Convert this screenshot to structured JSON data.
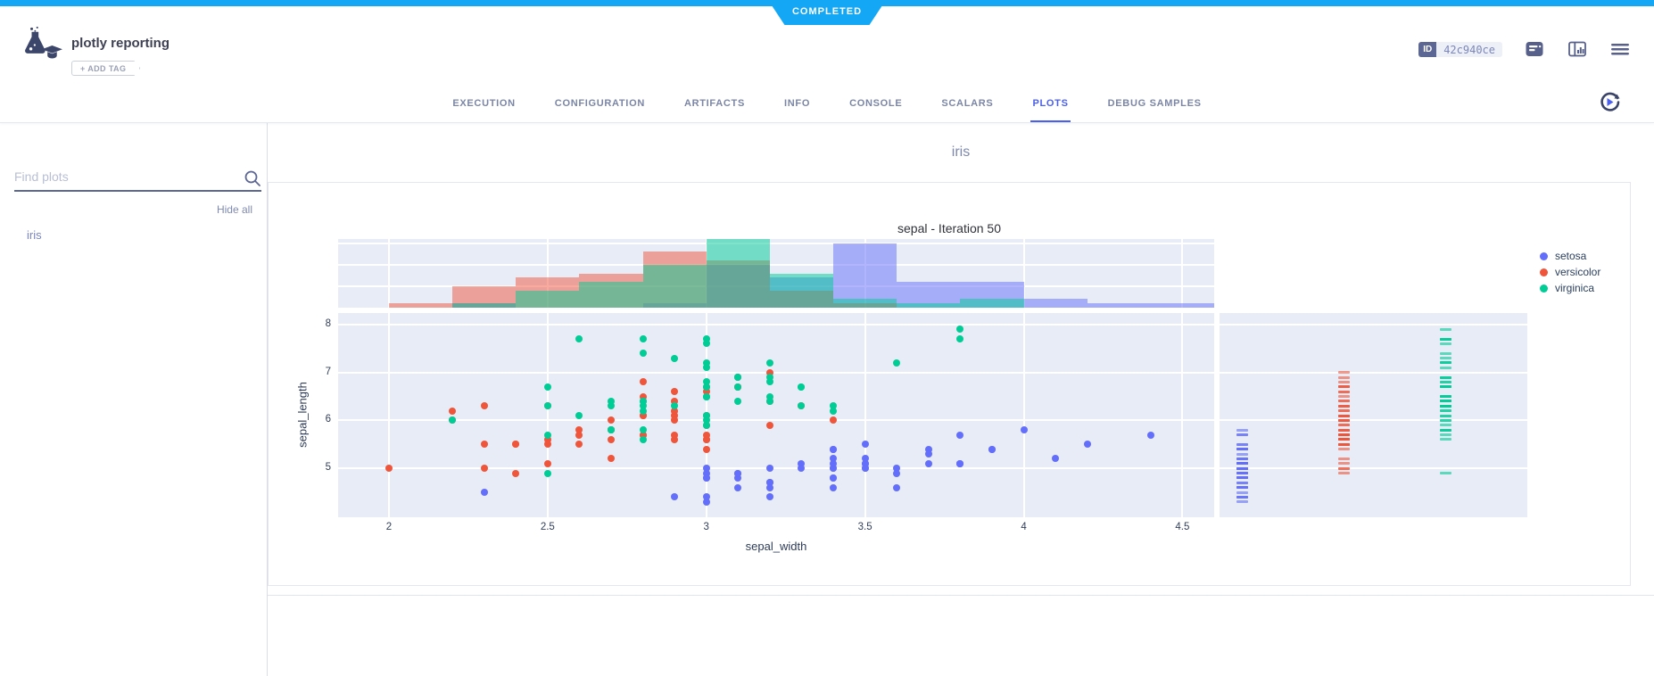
{
  "status_ribbon": {
    "label": "COMPLETED",
    "color": "#13a7f5"
  },
  "header": {
    "logo_icon": "experiment-flask-icon",
    "title": "plotly reporting",
    "add_tag_label": "+ ADD TAG",
    "id_label": "ID",
    "id_value": "42c940ce",
    "action_icons": [
      "details-icon",
      "compare-panel-icon",
      "menu-icon"
    ]
  },
  "tabs": {
    "items": [
      "EXECUTION",
      "CONFIGURATION",
      "ARTIFACTS",
      "INFO",
      "CONSOLE",
      "SCALARS",
      "PLOTS",
      "DEBUG SAMPLES"
    ],
    "active": "PLOTS",
    "accent_color": "#4a5ff0",
    "refresh_icon": "auto-refresh-icon"
  },
  "sidebar": {
    "search_placeholder": "Find plots",
    "search_icon": "search-icon",
    "hide_all_label": "Hide all",
    "items": [
      "iris"
    ]
  },
  "content": {
    "group_title": "iris"
  },
  "chart_data": {
    "type": "scatter",
    "title": "sepal - Iteration 50",
    "xlabel": "sepal_width",
    "ylabel": "sepal_length",
    "x_range": [
      1.84,
      4.6
    ],
    "y_range": [
      3.98,
      8.24
    ],
    "x_ticks": [
      2,
      2.5,
      3,
      3.5,
      4,
      4.5
    ],
    "y_ticks": [
      5,
      6,
      7,
      8
    ],
    "grid": true,
    "legend_position": "right",
    "plot_bg": "#e7ecf6",
    "marginal_top": "histogram",
    "marginal_right": "rug",
    "hist_bin_width": 0.2,
    "hist_gridline_counts": [
      5,
      10,
      15
    ],
    "series": [
      {
        "name": "setosa",
        "color": "#636EFA",
        "points": [
          [
            3.5,
            5.1
          ],
          [
            3.0,
            4.9
          ],
          [
            3.2,
            4.7
          ],
          [
            3.1,
            4.6
          ],
          [
            3.6,
            5.0
          ],
          [
            3.9,
            5.4
          ],
          [
            3.4,
            4.6
          ],
          [
            3.4,
            5.0
          ],
          [
            2.9,
            4.4
          ],
          [
            3.1,
            4.9
          ],
          [
            3.7,
            5.4
          ],
          [
            3.4,
            4.8
          ],
          [
            3.0,
            4.8
          ],
          [
            3.0,
            4.3
          ],
          [
            4.0,
            5.8
          ],
          [
            4.4,
            5.7
          ],
          [
            3.9,
            5.4
          ],
          [
            3.5,
            5.1
          ],
          [
            3.8,
            5.7
          ],
          [
            3.8,
            5.1
          ],
          [
            3.4,
            5.4
          ],
          [
            3.7,
            5.1
          ],
          [
            3.6,
            4.6
          ],
          [
            3.3,
            5.1
          ],
          [
            3.4,
            4.8
          ],
          [
            3.0,
            5.0
          ],
          [
            3.4,
            5.0
          ],
          [
            3.5,
            5.2
          ],
          [
            3.4,
            5.2
          ],
          [
            3.2,
            4.7
          ],
          [
            3.1,
            4.8
          ],
          [
            3.4,
            5.4
          ],
          [
            4.1,
            5.2
          ],
          [
            4.2,
            5.5
          ],
          [
            3.1,
            4.9
          ],
          [
            3.2,
            5.0
          ],
          [
            3.5,
            5.5
          ],
          [
            3.6,
            4.9
          ],
          [
            3.0,
            4.4
          ],
          [
            3.4,
            5.1
          ],
          [
            3.5,
            5.0
          ],
          [
            2.3,
            4.5
          ],
          [
            3.2,
            4.4
          ],
          [
            3.5,
            5.0
          ],
          [
            3.8,
            5.1
          ],
          [
            3.0,
            4.8
          ],
          [
            3.8,
            5.1
          ],
          [
            3.2,
            4.6
          ],
          [
            3.7,
            5.3
          ],
          [
            3.3,
            5.0
          ]
        ],
        "hist": [
          [
            2.2,
            1
          ],
          [
            2.8,
            1
          ],
          [
            3.0,
            10
          ],
          [
            3.2,
            7
          ],
          [
            3.4,
            15
          ],
          [
            3.6,
            6
          ],
          [
            3.8,
            6
          ],
          [
            4.0,
            2
          ],
          [
            4.2,
            1
          ],
          [
            4.4,
            1
          ]
        ]
      },
      {
        "name": "versicolor",
        "color": "#EF553B",
        "points": [
          [
            3.2,
            7.0
          ],
          [
            3.2,
            6.4
          ],
          [
            3.1,
            6.9
          ],
          [
            2.3,
            5.5
          ],
          [
            2.8,
            6.5
          ],
          [
            2.8,
            5.7
          ],
          [
            3.3,
            6.3
          ],
          [
            2.4,
            4.9
          ],
          [
            2.9,
            6.6
          ],
          [
            2.7,
            5.2
          ],
          [
            2.0,
            5.0
          ],
          [
            3.0,
            5.9
          ],
          [
            2.2,
            6.0
          ],
          [
            2.9,
            6.1
          ],
          [
            2.9,
            5.6
          ],
          [
            3.1,
            6.7
          ],
          [
            3.0,
            5.6
          ],
          [
            2.7,
            5.8
          ],
          [
            2.2,
            6.2
          ],
          [
            2.5,
            5.6
          ],
          [
            3.2,
            5.9
          ],
          [
            2.8,
            6.1
          ],
          [
            2.5,
            6.3
          ],
          [
            2.8,
            6.1
          ],
          [
            2.9,
            6.4
          ],
          [
            3.0,
            6.6
          ],
          [
            2.8,
            6.8
          ],
          [
            3.0,
            6.7
          ],
          [
            2.9,
            6.0
          ],
          [
            2.6,
            5.7
          ],
          [
            2.4,
            5.5
          ],
          [
            2.4,
            5.5
          ],
          [
            2.7,
            5.8
          ],
          [
            2.7,
            6.0
          ],
          [
            3.0,
            5.4
          ],
          [
            3.4,
            6.0
          ],
          [
            3.1,
            6.7
          ],
          [
            2.3,
            6.3
          ],
          [
            3.0,
            5.6
          ],
          [
            2.5,
            5.5
          ],
          [
            2.6,
            5.5
          ],
          [
            3.0,
            6.1
          ],
          [
            2.6,
            5.8
          ],
          [
            2.3,
            5.0
          ],
          [
            2.7,
            5.6
          ],
          [
            3.0,
            5.7
          ],
          [
            2.9,
            5.7
          ],
          [
            2.9,
            6.2
          ],
          [
            2.5,
            5.1
          ],
          [
            2.8,
            5.7
          ]
        ],
        "hist": [
          [
            2.0,
            1
          ],
          [
            2.2,
            5
          ],
          [
            2.4,
            7
          ],
          [
            2.6,
            8
          ],
          [
            2.8,
            13
          ],
          [
            3.0,
            11
          ],
          [
            3.2,
            4
          ],
          [
            3.4,
            1
          ]
        ]
      },
      {
        "name": "virginica",
        "color": "#00CC96",
        "points": [
          [
            3.3,
            6.3
          ],
          [
            2.7,
            5.8
          ],
          [
            3.0,
            7.1
          ],
          [
            2.9,
            6.3
          ],
          [
            3.0,
            6.5
          ],
          [
            3.0,
            7.6
          ],
          [
            2.5,
            4.9
          ],
          [
            2.9,
            7.3
          ],
          [
            2.5,
            6.7
          ],
          [
            3.6,
            7.2
          ],
          [
            3.2,
            6.5
          ],
          [
            2.7,
            6.4
          ],
          [
            3.0,
            6.8
          ],
          [
            2.5,
            5.7
          ],
          [
            2.8,
            5.8
          ],
          [
            3.2,
            6.4
          ],
          [
            3.0,
            6.5
          ],
          [
            3.8,
            7.7
          ],
          [
            2.6,
            7.7
          ],
          [
            2.2,
            6.0
          ],
          [
            3.2,
            6.9
          ],
          [
            2.8,
            5.6
          ],
          [
            2.8,
            7.7
          ],
          [
            2.7,
            6.3
          ],
          [
            3.3,
            6.7
          ],
          [
            3.2,
            7.2
          ],
          [
            2.8,
            6.2
          ],
          [
            3.0,
            6.1
          ],
          [
            2.8,
            6.4
          ],
          [
            3.0,
            7.2
          ],
          [
            2.8,
            7.4
          ],
          [
            3.8,
            7.9
          ],
          [
            2.8,
            6.4
          ],
          [
            2.8,
            6.3
          ],
          [
            2.6,
            6.1
          ],
          [
            3.0,
            7.7
          ],
          [
            3.4,
            6.3
          ],
          [
            3.1,
            6.4
          ],
          [
            3.0,
            6.0
          ],
          [
            3.1,
            6.9
          ],
          [
            3.1,
            6.7
          ],
          [
            3.1,
            6.9
          ],
          [
            2.7,
            5.8
          ],
          [
            3.2,
            6.8
          ],
          [
            3.3,
            6.7
          ],
          [
            3.0,
            6.7
          ],
          [
            2.5,
            6.3
          ],
          [
            3.0,
            6.5
          ],
          [
            3.4,
            6.2
          ],
          [
            3.0,
            5.9
          ]
        ],
        "hist": [
          [
            2.2,
            1
          ],
          [
            2.4,
            4
          ],
          [
            2.6,
            6
          ],
          [
            2.8,
            10
          ],
          [
            3.0,
            16
          ],
          [
            3.2,
            8
          ],
          [
            3.4,
            2
          ],
          [
            3.6,
            1
          ],
          [
            3.8,
            2
          ]
        ]
      }
    ]
  }
}
